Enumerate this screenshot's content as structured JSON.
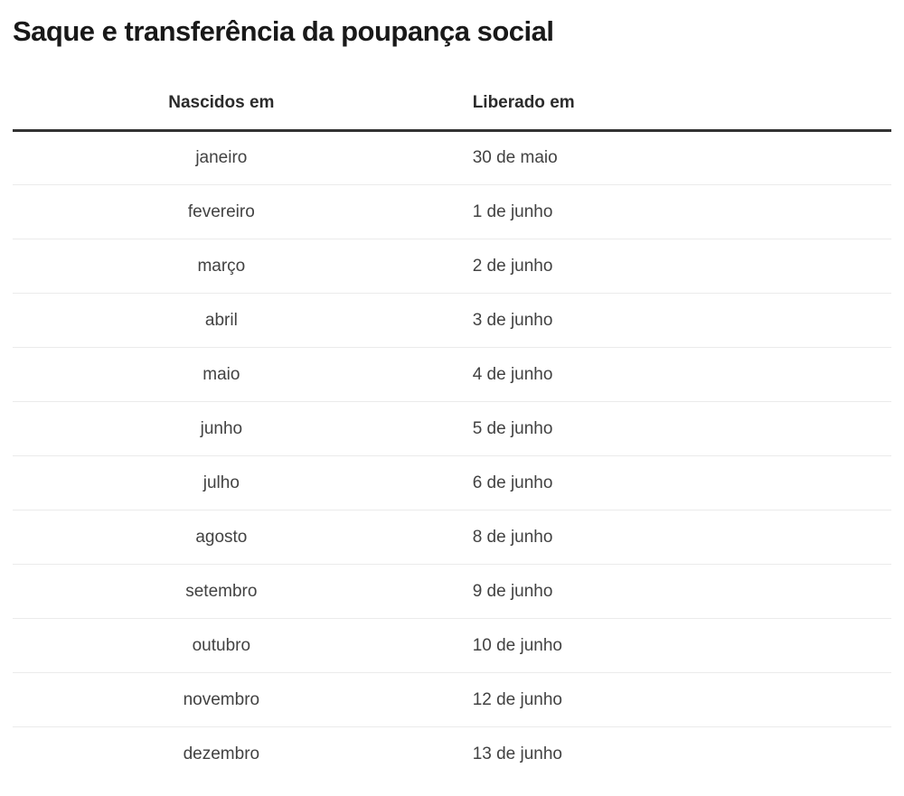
{
  "page": {
    "title": "Saque e transferência da poupança social"
  },
  "table": {
    "columns": [
      "Nascidos em",
      "Liberado em"
    ],
    "rows": [
      [
        "janeiro",
        "30 de maio"
      ],
      [
        "fevereiro",
        "1 de junho"
      ],
      [
        "março",
        "2 de junho"
      ],
      [
        "abril",
        "3 de junho"
      ],
      [
        "maio",
        "4 de junho"
      ],
      [
        "junho",
        "5 de junho"
      ],
      [
        "julho",
        "6 de junho"
      ],
      [
        "agosto",
        "8 de junho"
      ],
      [
        "setembro",
        "9 de junho"
      ],
      [
        "outubro",
        "10 de junho"
      ],
      [
        "novembro",
        "12 de junho"
      ],
      [
        "dezembro",
        "13 de junho"
      ]
    ]
  },
  "chart_data": {
    "type": "table",
    "title": "Saque e transferência da poupança social",
    "columns": [
      "Nascidos em",
      "Liberado em"
    ],
    "rows": [
      [
        "janeiro",
        "30 de maio"
      ],
      [
        "fevereiro",
        "1 de junho"
      ],
      [
        "março",
        "2 de junho"
      ],
      [
        "abril",
        "3 de junho"
      ],
      [
        "maio",
        "4 de junho"
      ],
      [
        "junho",
        "5 de junho"
      ],
      [
        "julho",
        "6 de junho"
      ],
      [
        "agosto",
        "8 de junho"
      ],
      [
        "setembro",
        "9 de junho"
      ],
      [
        "outubro",
        "10 de junho"
      ],
      [
        "novembro",
        "12 de junho"
      ],
      [
        "dezembro",
        "13 de junho"
      ]
    ],
    "layout": {
      "first_column_align": "center",
      "second_column_align": "left",
      "header_rule": "thick",
      "row_dividers": "thin-light-gray"
    }
  },
  "colors": {
    "background": "#ffffff",
    "title_text": "#191919",
    "header_text": "#2b2b2b",
    "body_text": "#424242",
    "header_rule": "#333333",
    "row_divider": "#ebebeb"
  }
}
